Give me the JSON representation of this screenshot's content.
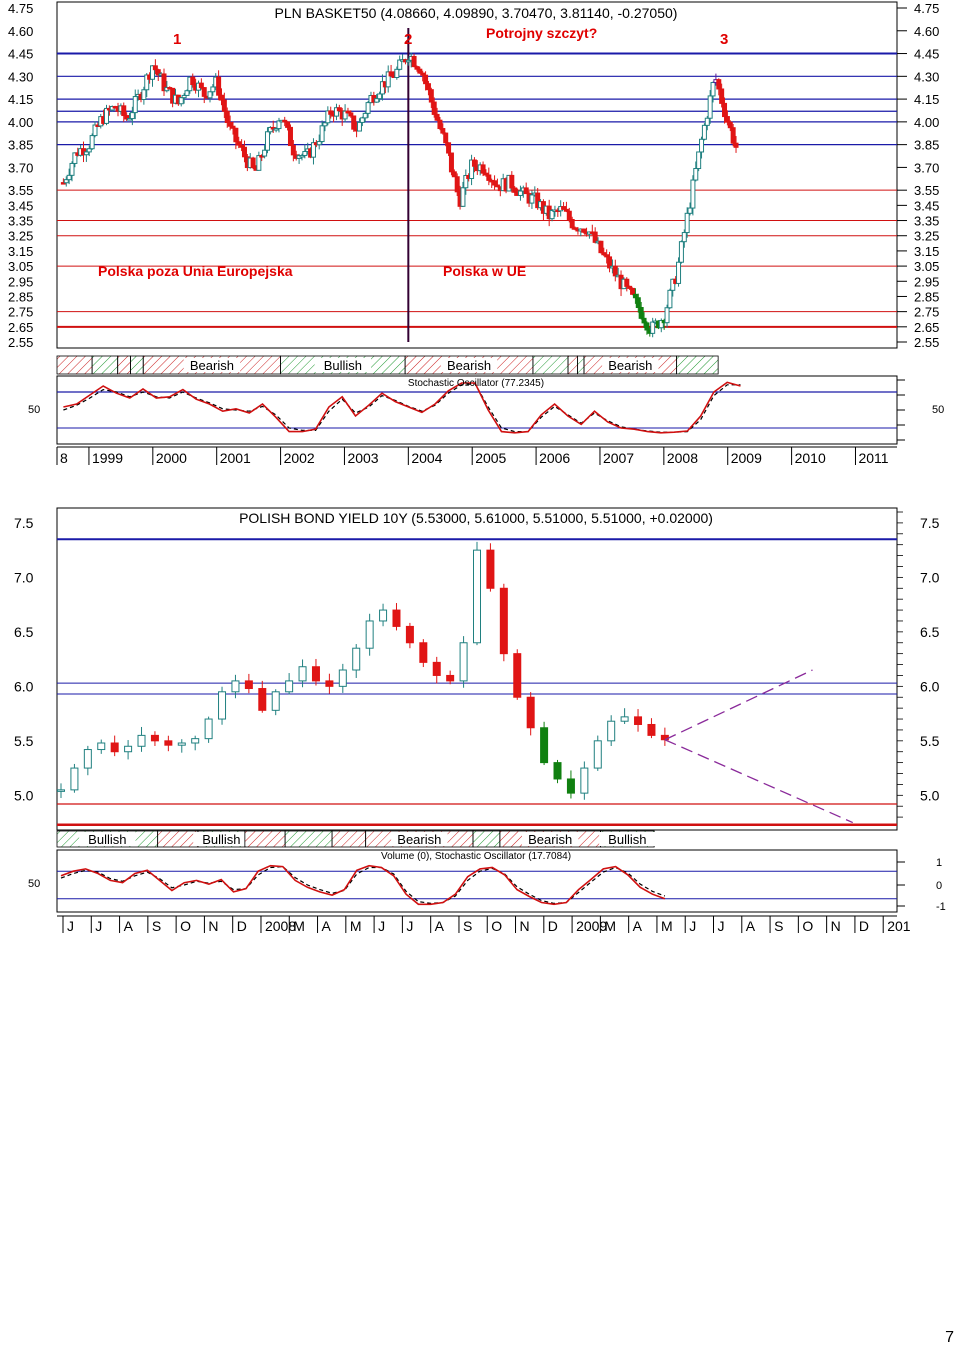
{
  "page_number": "7",
  "chart_data": [
    {
      "type": "candlestick",
      "title": "PLN BASKET50 (4.08660, 4.09890, 3.70470, 3.81140, -0.27050)",
      "annotations": {
        "peak_labels": [
          "1",
          "2",
          "3"
        ],
        "question": "Potrojny szczyt?",
        "region_before": "Polska poza Unia Europejska",
        "region_after": "Polska w UE"
      },
      "y_ticks": [
        "4.75",
        "4.60",
        "4.45",
        "4.30",
        "4.15",
        "4.00",
        "3.85",
        "3.70",
        "3.55",
        "3.45",
        "3.35",
        "3.25",
        "3.15",
        "3.05",
        "2.95",
        "2.85",
        "2.75",
        "2.65",
        "2.55"
      ],
      "ylim": [
        2.55,
        4.75
      ],
      "x_ticks": [
        "8",
        "1999",
        "2000",
        "2001",
        "2002",
        "2003",
        "2004",
        "2005",
        "2006",
        "2007",
        "2008",
        "2009",
        "2010",
        "2011"
      ],
      "xlim": [
        1998.5,
        2011.65
      ],
      "hlines_blue": [
        4.45,
        4.3,
        4.15,
        4.07,
        4.0,
        3.85
      ],
      "hlines_red": [
        3.55,
        3.35,
        3.25,
        3.05,
        2.75,
        2.65
      ],
      "vertical_line_year": 2004.0,
      "close": [
        [
          1998.6,
          3.6
        ],
        [
          1998.8,
          3.8
        ],
        [
          1999.0,
          3.85
        ],
        [
          1999.2,
          4.02
        ],
        [
          1999.4,
          4.1
        ],
        [
          1999.6,
          4.02
        ],
        [
          1999.8,
          4.18
        ],
        [
          2000.0,
          4.38
        ],
        [
          2000.2,
          4.22
        ],
        [
          2000.4,
          4.12
        ],
        [
          2000.6,
          4.3
        ],
        [
          2000.8,
          4.18
        ],
        [
          2001.0,
          4.26
        ],
        [
          2001.2,
          3.95
        ],
        [
          2001.4,
          3.8
        ],
        [
          2001.6,
          3.66
        ],
        [
          2001.8,
          3.9
        ],
        [
          2002.0,
          4.05
        ],
        [
          2002.2,
          3.82
        ],
        [
          2002.4,
          3.76
        ],
        [
          2002.6,
          3.9
        ],
        [
          2002.8,
          4.08
        ],
        [
          2003.0,
          4.05
        ],
        [
          2003.2,
          3.95
        ],
        [
          2003.4,
          4.15
        ],
        [
          2003.6,
          4.25
        ],
        [
          2003.8,
          4.32
        ],
        [
          2004.0,
          4.45
        ],
        [
          2004.2,
          4.35
        ],
        [
          2004.4,
          4.08
        ],
        [
          2004.6,
          3.82
        ],
        [
          2004.8,
          3.48
        ],
        [
          2005.0,
          3.72
        ],
        [
          2005.2,
          3.7
        ],
        [
          2005.4,
          3.58
        ],
        [
          2005.6,
          3.6
        ],
        [
          2005.8,
          3.52
        ],
        [
          2006.0,
          3.48
        ],
        [
          2006.2,
          3.38
        ],
        [
          2006.4,
          3.42
        ],
        [
          2006.6,
          3.32
        ],
        [
          2006.8,
          3.3
        ],
        [
          2007.0,
          3.15
        ],
        [
          2007.2,
          3.02
        ],
        [
          2007.4,
          2.9
        ],
        [
          2007.6,
          2.78
        ],
        [
          2007.8,
          2.63
        ],
        [
          2008.0,
          2.72
        ],
        [
          2008.2,
          3.0
        ],
        [
          2008.4,
          3.45
        ],
        [
          2008.6,
          3.9
        ],
        [
          2008.8,
          4.3
        ],
        [
          2009.0,
          4.0
        ],
        [
          2009.15,
          3.81
        ]
      ],
      "bands": [
        {
          "label": "",
          "kind": "bearish",
          "from": 1998.5,
          "to": 1999.05
        },
        {
          "label": "",
          "kind": "bullish",
          "from": 1999.05,
          "to": 1999.45
        },
        {
          "label": "",
          "kind": "bearish",
          "from": 1999.45,
          "to": 1999.65
        },
        {
          "label": "",
          "kind": "bullish",
          "from": 1999.65,
          "to": 1999.85
        },
        {
          "label": "Bearish",
          "kind": "bearish",
          "from": 1999.85,
          "to": 2002.0
        },
        {
          "label": "Bullish",
          "kind": "bullish",
          "from": 2002.0,
          "to": 2003.95
        },
        {
          "label": "Bearish",
          "kind": "bearish",
          "from": 2003.95,
          "to": 2005.95
        },
        {
          "label": "",
          "kind": "bullish",
          "from": 2005.95,
          "to": 2006.5
        },
        {
          "label": "",
          "kind": "bearish",
          "from": 2006.5,
          "to": 2006.65
        },
        {
          "label": "",
          "kind": "bullish",
          "from": 2006.65,
          "to": 2006.75
        },
        {
          "label": "Bearish",
          "kind": "bearish",
          "from": 2006.75,
          "to": 2008.2
        },
        {
          "label": "",
          "kind": "bullish",
          "from": 2008.2,
          "to": 2008.85
        }
      ],
      "oscillator": {
        "label": "Stochastic Oscillator (77.2345)",
        "y_tick": "50",
        "k": [
          55,
          60,
          75,
          90,
          78,
          70,
          85,
          70,
          72,
          84,
          68,
          60,
          48,
          52,
          45,
          60,
          38,
          14,
          14,
          18,
          55,
          72,
          40,
          58,
          78,
          64,
          55,
          46,
          60,
          82,
          95,
          95,
          50,
          14,
          12,
          14,
          42,
          60,
          40,
          26,
          48,
          30,
          20,
          18,
          14,
          12,
          13,
          15,
          40,
          80,
          96,
          90
        ],
        "d": [
          50,
          58,
          70,
          84,
          80,
          72,
          80,
          72,
          70,
          80,
          70,
          62,
          52,
          50,
          48,
          56,
          42,
          20,
          16,
          16,
          48,
          68,
          45,
          55,
          74,
          66,
          56,
          48,
          58,
          78,
          92,
          94,
          55,
          20,
          14,
          14,
          38,
          56,
          42,
          28,
          45,
          32,
          22,
          18,
          15,
          13,
          13,
          14,
          34,
          74,
          92,
          92
        ]
      }
    },
    {
      "type": "candlestick",
      "title": "POLISH BOND YIELD 10Y (5.53000, 5.61000, 5.51000, 5.51000, +0.02000)",
      "y_ticks": [
        "7.5",
        "7.0",
        "6.5",
        "6.0",
        "5.5",
        "5.0"
      ],
      "ylim": [
        4.7,
        7.6
      ],
      "x_ticks": [
        "J",
        "J",
        "A",
        "S",
        "O",
        "N",
        "D",
        "2008",
        "M",
        "A",
        "M",
        "J",
        "J",
        "A",
        "S",
        "O",
        "N",
        "D",
        "2009",
        "M",
        "A",
        "M",
        "J",
        "J",
        "A",
        "S",
        "O",
        "N",
        "D",
        "201"
      ],
      "hlines_blue": [
        7.35,
        6.03,
        5.93
      ],
      "hlines_red": [
        4.92,
        4.73
      ],
      "close": [
        [
          0,
          5.05
        ],
        [
          1,
          5.25
        ],
        [
          2,
          5.42
        ],
        [
          3,
          5.48
        ],
        [
          4,
          5.4
        ],
        [
          5,
          5.45
        ],
        [
          6,
          5.55
        ],
        [
          7,
          5.5
        ],
        [
          8,
          5.46
        ],
        [
          9,
          5.48
        ],
        [
          10,
          5.52
        ],
        [
          11,
          5.7
        ],
        [
          12,
          5.95
        ],
        [
          13,
          6.05
        ],
        [
          14,
          5.98
        ],
        [
          15,
          5.78
        ],
        [
          16,
          5.95
        ],
        [
          17,
          6.05
        ],
        [
          18,
          6.18
        ],
        [
          19,
          6.05
        ],
        [
          20,
          6.0
        ],
        [
          21,
          6.15
        ],
        [
          22,
          6.35
        ],
        [
          23,
          6.6
        ],
        [
          24,
          6.7
        ],
        [
          25,
          6.55
        ],
        [
          26,
          6.4
        ],
        [
          27,
          6.22
        ],
        [
          28,
          6.1
        ],
        [
          29,
          6.05
        ],
        [
          30,
          6.4
        ],
        [
          31,
          7.25
        ],
        [
          32,
          6.9
        ],
        [
          33,
          6.3
        ],
        [
          34,
          5.9
        ],
        [
          35,
          5.62
        ],
        [
          36,
          5.3
        ],
        [
          37,
          5.15
        ],
        [
          38,
          5.02
        ],
        [
          39,
          5.25
        ],
        [
          40,
          5.5
        ],
        [
          41,
          5.68
        ],
        [
          42,
          5.72
        ],
        [
          43,
          5.65
        ],
        [
          44,
          5.55
        ],
        [
          45,
          5.51
        ]
      ],
      "projection_up": [
        [
          45,
          5.51
        ],
        [
          56,
          6.15
        ]
      ],
      "projection_down": [
        [
          45,
          5.51
        ],
        [
          59,
          4.75
        ]
      ],
      "bands": [
        {
          "label": "Bullish",
          "kind": "bullish",
          "from": 0,
          "to": 7.5
        },
        {
          "label": "",
          "kind": "bearish",
          "from": 7.5,
          "to": 10.5
        },
        {
          "label": "Bullish",
          "kind": "bullish",
          "from": 10.5,
          "to": 14
        },
        {
          "label": "",
          "kind": "bearish",
          "from": 14,
          "to": 17
        },
        {
          "label": "",
          "kind": "bullish",
          "from": 17,
          "to": 20.5
        },
        {
          "label": "",
          "kind": "bearish",
          "from": 20.5,
          "to": 23
        },
        {
          "label": "Bearish",
          "kind": "bearish",
          "from": 23,
          "to": 31
        },
        {
          "label": "",
          "kind": "bullish",
          "from": 31,
          "to": 33
        },
        {
          "label": "Bearish",
          "kind": "bearish",
          "from": 33,
          "to": 40.5
        },
        {
          "label": "Bullish",
          "kind": "bullish",
          "from": 40.5,
          "to": 44.5
        }
      ],
      "oscillator": {
        "label": "Volume (0), Stochastic Oscillator (17.7084)",
        "y_tick": "50",
        "right_ticks": [
          "1",
          "0",
          "-1"
        ],
        "k": [
          70,
          80,
          85,
          75,
          60,
          55,
          75,
          82,
          60,
          38,
          55,
          60,
          52,
          62,
          35,
          42,
          80,
          92,
          90,
          60,
          45,
          35,
          28,
          40,
          82,
          92,
          88,
          70,
          30,
          8,
          8,
          12,
          30,
          68,
          85,
          88,
          72,
          40,
          25,
          12,
          8,
          12,
          40,
          62,
          85,
          90,
          72,
          45,
          30,
          20
        ],
        "d": [
          65,
          75,
          82,
          78,
          64,
          58,
          70,
          78,
          64,
          44,
          50,
          58,
          54,
          58,
          40,
          42,
          72,
          88,
          90,
          66,
          50,
          40,
          32,
          38,
          74,
          88,
          88,
          74,
          36,
          14,
          10,
          12,
          26,
          60,
          80,
          86,
          74,
          46,
          30,
          16,
          10,
          12,
          34,
          56,
          78,
          88,
          76,
          52,
          36,
          26
        ]
      }
    }
  ]
}
